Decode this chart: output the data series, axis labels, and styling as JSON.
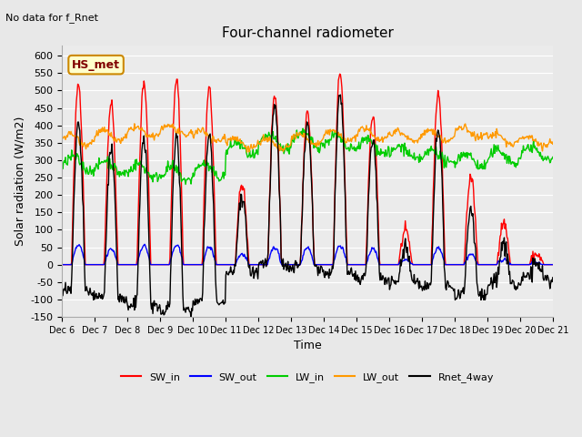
{
  "title": "Four-channel radiometer",
  "subtitle": "No data for f_Rnet",
  "ylabel": "Solar radiation (W/m2)",
  "xlabel": "Time",
  "legend_labels": [
    "SW_in",
    "SW_out",
    "LW_in",
    "LW_out",
    "Rnet_4way"
  ],
  "legend_colors": [
    "#ff0000",
    "#0000ff",
    "#00cc00",
    "#ff9900",
    "#000000"
  ],
  "box_label": "HS_met",
  "ylim": [
    -150,
    630
  ],
  "yticks": [
    -150,
    -100,
    -50,
    0,
    50,
    100,
    150,
    200,
    250,
    300,
    350,
    400,
    450,
    500,
    550,
    600
  ],
  "xlim_days": [
    6,
    21
  ],
  "xtick_labels": [
    "Dec 6",
    "Dec 7",
    "Dec 8",
    "Dec 9",
    "Dec 10",
    "Dec 11",
    "Dec 12",
    "Dec 13",
    "Dec 14",
    "Dec 15",
    "Dec 16",
    "Dec 17",
    "Dec 18",
    "Dec 19",
    "Dec 20",
    "Dec 21"
  ],
  "bg_color": "#e8e8e8",
  "plot_bg": "#ebebeb",
  "grid_color": "#ffffff",
  "line_widths": [
    1.0,
    1.0,
    1.0,
    1.0,
    1.0
  ],
  "sw_in_peaks": [
    520,
    465,
    525,
    530,
    510,
    230,
    490,
    440,
    555,
    430,
    95,
    495,
    250,
    120,
    30
  ],
  "sw_out_peaks": [
    55,
    45,
    55,
    55,
    50,
    30,
    50,
    50,
    55,
    45,
    15,
    50,
    30,
    15,
    5
  ],
  "lw_in_base": 290,
  "lw_out_base": 350,
  "lw_in_day_offsets": [
    0,
    -10,
    -20,
    -30,
    -20,
    40,
    60,
    70,
    60,
    50,
    30,
    20,
    10,
    20,
    30
  ],
  "lw_out_day_offsets": [
    10,
    20,
    30,
    35,
    20,
    0,
    -5,
    10,
    20,
    25,
    20,
    20,
    30,
    10,
    5
  ]
}
